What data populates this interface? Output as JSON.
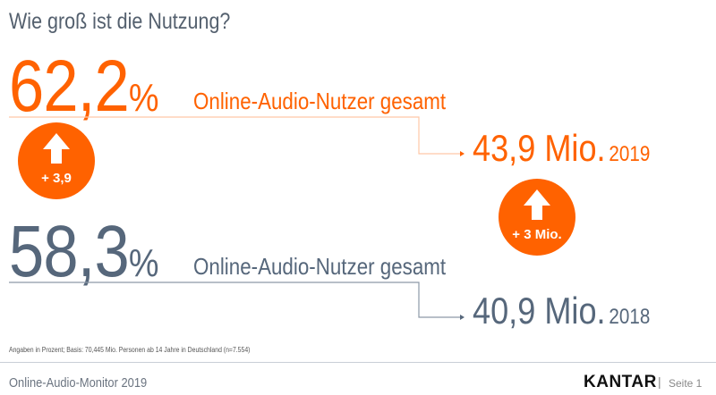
{
  "title": "Wie groß ist die Nutzung?",
  "current": {
    "percent": "62,2",
    "percent_sign": "%",
    "label": "Online-Audio-Nutzer gesamt",
    "mio": "43,9 Mio.",
    "year": "2019"
  },
  "previous": {
    "percent": "58,3",
    "percent_sign": "%",
    "label": "Online-Audio-Nutzer gesamt",
    "mio": "40,9 Mio.",
    "year": "2018"
  },
  "badges": [
    {
      "icon": "arrow-up-icon",
      "text": "+ 3,9"
    },
    {
      "icon": "arrow-up-icon",
      "text": "+ 3 Mio."
    }
  ],
  "footnote": "Angaben in Prozent; Basis: 70,445 Mio. Personen ab 14 Jahre in Deutschland (n=7.554)",
  "footer": {
    "title": "Online-Audio-Monitor 2019",
    "logo": "KANTAR",
    "separator": "|",
    "page": "Seite 1"
  },
  "colors": {
    "accent": "#ff6200",
    "secondary": "#56677b"
  }
}
